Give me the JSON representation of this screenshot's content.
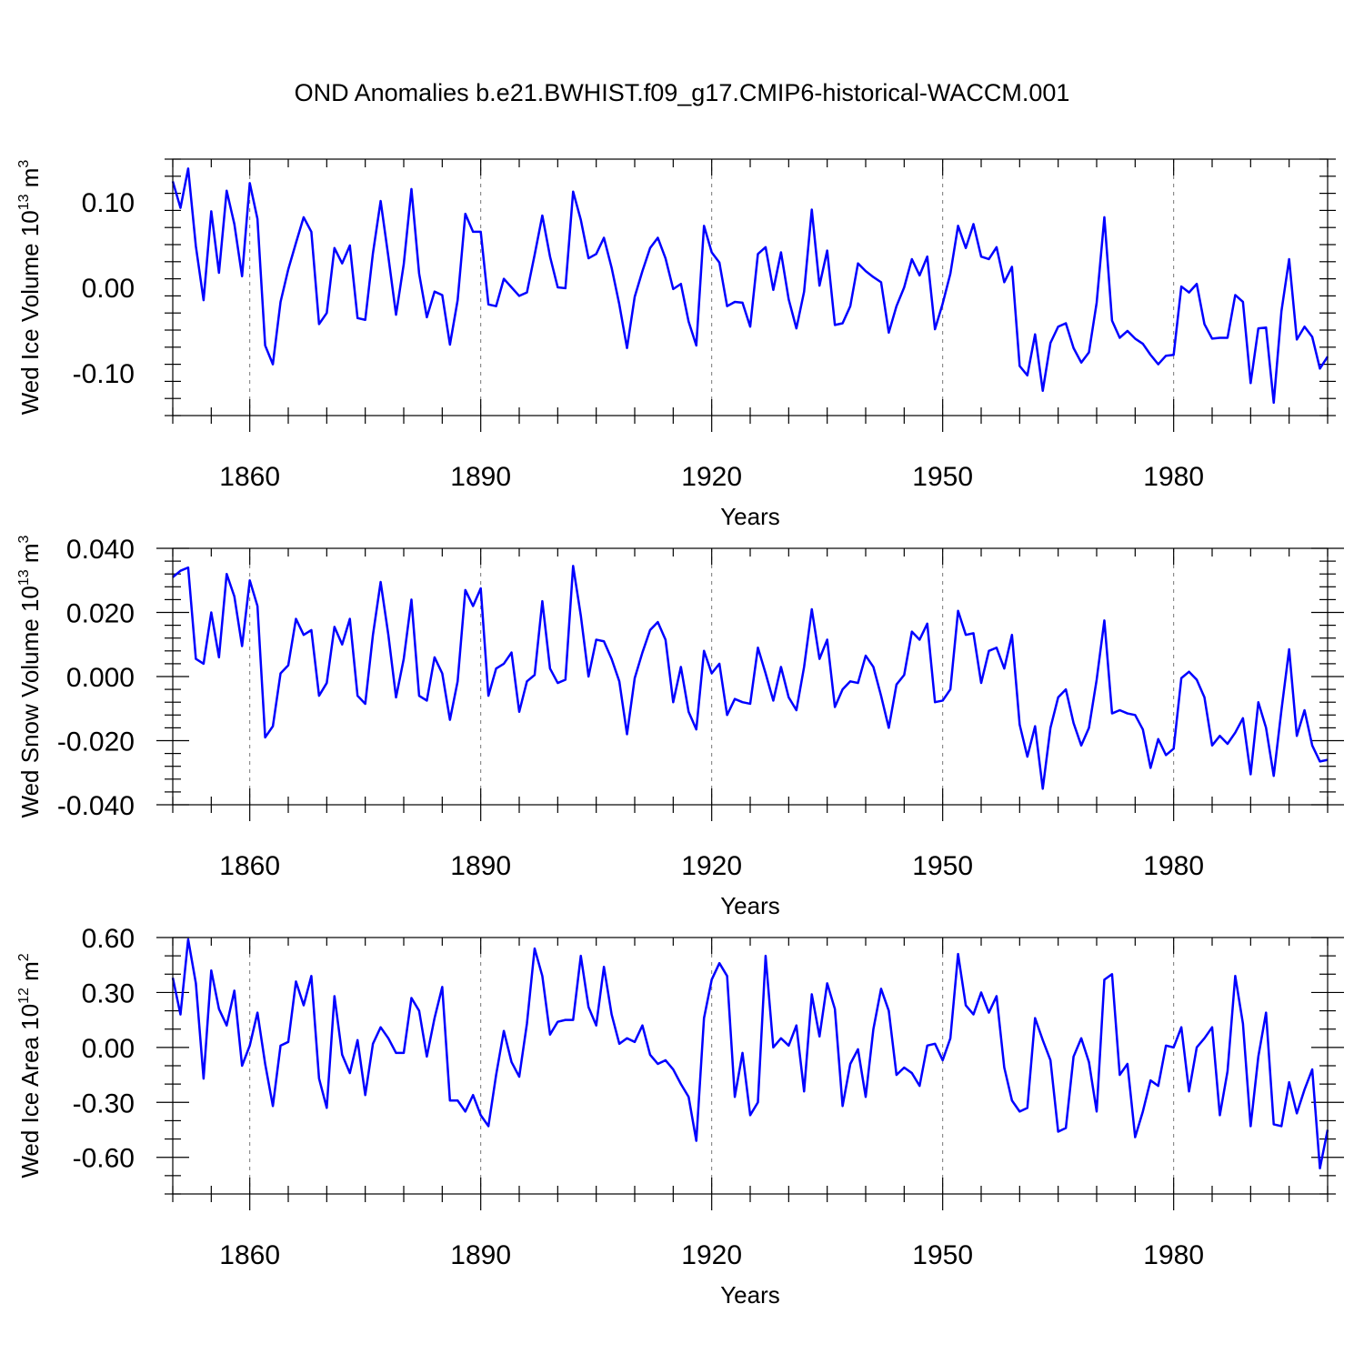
{
  "title": "OND Anomalies b.e21.BWHIST.f09_g17.CMIP6-historical-WACCM.001",
  "line_color": "#0000ff",
  "chart_data": [
    {
      "type": "line",
      "ylabel_main": "Wed Ice Volume 10",
      "ylabel_exp": "13",
      "ylabel_unit": " m",
      "ylabel_unit_exp": "3",
      "xlabel": "Years",
      "xlim": [
        1850,
        2000
      ],
      "ylim": [
        -0.15,
        0.15
      ],
      "x_ticks": [
        1860,
        1890,
        1920,
        1950,
        1980
      ],
      "x_tick_labels": [
        "1860",
        "1890",
        "1920",
        "1950",
        "1980"
      ],
      "y_ticks": [
        0.1,
        0.0,
        -0.1
      ],
      "y_tick_labels": [
        "0.10",
        "0.00",
        "-0.10"
      ],
      "y_minor_step": 0.02,
      "x_start": 1850,
      "values": [
        0.124,
        0.093,
        0.139,
        0.048,
        -0.015,
        0.089,
        0.017,
        0.113,
        0.074,
        0.013,
        0.122,
        0.08,
        -0.068,
        -0.09,
        -0.017,
        0.021,
        0.052,
        0.082,
        0.065,
        -0.043,
        -0.03,
        0.046,
        0.028,
        0.049,
        -0.036,
        -0.038,
        0.04,
        0.101,
        0.036,
        -0.032,
        0.027,
        0.115,
        0.016,
        -0.035,
        -0.005,
        -0.009,
        -0.067,
        -0.015,
        0.086,
        0.065,
        0.065,
        -0.02,
        -0.022,
        0.01,
        0.0,
        -0.01,
        -0.006,
        0.038,
        0.084,
        0.036,
        0.0,
        -0.001,
        0.112,
        0.079,
        0.034,
        0.039,
        0.058,
        0.023,
        -0.02,
        -0.071,
        -0.011,
        0.019,
        0.046,
        0.058,
        0.034,
        -0.002,
        0.004,
        -0.04,
        -0.068,
        0.072,
        0.041,
        0.029,
        -0.022,
        -0.017,
        -0.018,
        -0.046,
        0.039,
        0.047,
        -0.003,
        0.041,
        -0.014,
        -0.048,
        -0.005,
        0.091,
        0.002,
        0.043,
        -0.044,
        -0.042,
        -0.022,
        0.028,
        0.019,
        0.012,
        0.006,
        -0.053,
        -0.022,
        0.0,
        0.033,
        0.014,
        0.036,
        -0.049,
        -0.019,
        0.016,
        0.072,
        0.046,
        0.074,
        0.036,
        0.033,
        0.047,
        0.006,
        0.024,
        -0.092,
        -0.103,
        -0.055,
        -0.121,
        -0.065,
        -0.046,
        -0.042,
        -0.071,
        -0.088,
        -0.076,
        -0.018,
        0.082,
        -0.039,
        -0.059,
        -0.051,
        -0.06,
        -0.066,
        -0.079,
        -0.09,
        -0.08,
        -0.079,
        0.001,
        -0.006,
        0.004,
        -0.043,
        -0.06,
        -0.059,
        -0.059,
        -0.009,
        -0.017,
        -0.112,
        -0.048,
        -0.047,
        -0.135,
        -0.028,
        0.033,
        -0.061,
        -0.046,
        -0.058,
        -0.095,
        -0.081
      ]
    },
    {
      "type": "line",
      "ylabel_main": "Wed Snow Volume 10",
      "ylabel_exp": "13",
      "ylabel_unit": " m",
      "ylabel_unit_exp": "3",
      "xlabel": "Years",
      "xlim": [
        1850,
        2000
      ],
      "ylim": [
        -0.04,
        0.04
      ],
      "x_ticks": [
        1860,
        1890,
        1920,
        1950,
        1980
      ],
      "x_tick_labels": [
        "1860",
        "1890",
        "1920",
        "1950",
        "1980"
      ],
      "y_ticks": [
        0.04,
        0.02,
        0.0,
        -0.02,
        -0.04
      ],
      "y_tick_labels": [
        "0.040",
        "0.020",
        "0.000",
        "-0.020",
        "-0.040"
      ],
      "y_minor_step": 0.004,
      "x_start": 1850,
      "values": [
        0.031,
        0.033,
        0.034,
        0.0055,
        0.004,
        0.02,
        0.006,
        0.032,
        0.025,
        0.0095,
        0.03,
        0.022,
        -0.019,
        -0.0155,
        0.001,
        0.0035,
        0.018,
        0.013,
        0.0145,
        -0.006,
        -0.002,
        0.0155,
        0.01,
        0.018,
        -0.006,
        -0.0085,
        0.013,
        0.0295,
        0.013,
        -0.0065,
        0.0055,
        0.024,
        -0.006,
        -0.0075,
        0.006,
        0.001,
        -0.0135,
        -0.0015,
        0.027,
        0.022,
        0.0275,
        -0.006,
        0.0025,
        0.004,
        0.0075,
        -0.011,
        -0.0015,
        0.0005,
        0.0235,
        0.0025,
        -0.002,
        -0.001,
        0.0345,
        0.019,
        0.0,
        0.0115,
        0.011,
        0.0055,
        -0.0015,
        -0.018,
        -0.0005,
        0.0075,
        0.0145,
        0.017,
        0.0115,
        -0.008,
        0.003,
        -0.011,
        -0.0165,
        0.008,
        0.001,
        0.004,
        -0.012,
        -0.007,
        -0.008,
        -0.0085,
        0.009,
        0.001,
        -0.0075,
        0.003,
        -0.0065,
        -0.0105,
        0.003,
        0.021,
        0.0055,
        0.0115,
        -0.0095,
        -0.004,
        -0.0015,
        -0.002,
        0.0065,
        0.003,
        -0.006,
        -0.016,
        -0.0025,
        0.0005,
        0.014,
        0.0115,
        0.0165,
        -0.008,
        -0.0075,
        -0.004,
        0.0205,
        0.013,
        0.0135,
        -0.002,
        0.008,
        0.009,
        0.0025,
        0.013,
        -0.015,
        -0.025,
        -0.0155,
        -0.035,
        -0.016,
        -0.0065,
        -0.004,
        -0.0145,
        -0.0215,
        -0.016,
        -0.001,
        0.0175,
        -0.0115,
        -0.0105,
        -0.0115,
        -0.012,
        -0.0165,
        -0.0285,
        -0.0195,
        -0.0245,
        -0.0225,
        -0.0005,
        0.0015,
        -0.001,
        -0.0065,
        -0.0215,
        -0.0185,
        -0.021,
        -0.0175,
        -0.013,
        -0.0305,
        -0.008,
        -0.016,
        -0.031,
        -0.0105,
        0.0085,
        -0.0185,
        -0.0105,
        -0.0215,
        -0.0265,
        -0.026
      ]
    },
    {
      "type": "line",
      "ylabel_main": "Wed Ice Area 10",
      "ylabel_exp": "12",
      "ylabel_unit": " m",
      "ylabel_unit_exp": "2",
      "xlabel": "Years",
      "xlim": [
        1850,
        2000
      ],
      "ylim": [
        -0.8,
        0.6
      ],
      "x_ticks": [
        1860,
        1890,
        1920,
        1950,
        1980
      ],
      "x_tick_labels": [
        "1860",
        "1890",
        "1920",
        "1950",
        "1980"
      ],
      "y_ticks": [
        0.6,
        0.3,
        0.0,
        -0.3,
        -0.6
      ],
      "y_tick_labels": [
        "0.60",
        "0.30",
        "0.00",
        "-0.30",
        "-0.60"
      ],
      "y_minor_step": 0.1,
      "x_start": 1850,
      "values": [
        0.38,
        0.18,
        0.59,
        0.35,
        -0.17,
        0.42,
        0.21,
        0.12,
        0.31,
        -0.1,
        0.01,
        0.19,
        -0.09,
        -0.32,
        0.01,
        0.03,
        0.36,
        0.23,
        0.39,
        -0.17,
        -0.33,
        0.28,
        -0.04,
        -0.14,
        0.04,
        -0.26,
        0.02,
        0.11,
        0.05,
        -0.03,
        -0.03,
        0.27,
        0.2,
        -0.05,
        0.16,
        0.33,
        -0.29,
        -0.29,
        -0.35,
        -0.26,
        -0.37,
        -0.43,
        -0.15,
        0.09,
        -0.08,
        -0.16,
        0.13,
        0.54,
        0.39,
        0.07,
        0.14,
        0.15,
        0.15,
        0.5,
        0.22,
        0.12,
        0.44,
        0.18,
        0.02,
        0.05,
        0.03,
        0.12,
        -0.04,
        -0.09,
        -0.07,
        -0.12,
        -0.2,
        -0.27,
        -0.51,
        0.16,
        0.37,
        0.46,
        0.39,
        -0.27,
        -0.03,
        -0.37,
        -0.3,
        0.5,
        0.0,
        0.05,
        0.01,
        0.12,
        -0.24,
        0.29,
        0.06,
        0.35,
        0.21,
        -0.32,
        -0.09,
        -0.01,
        -0.27,
        0.1,
        0.32,
        0.2,
        -0.15,
        -0.11,
        -0.14,
        -0.21,
        0.01,
        0.02,
        -0.07,
        0.05,
        0.51,
        0.23,
        0.18,
        0.3,
        0.19,
        0.28,
        -0.11,
        -0.29,
        -0.35,
        -0.33,
        0.16,
        0.04,
        -0.07,
        -0.46,
        -0.44,
        -0.05,
        0.05,
        -0.08,
        -0.35,
        0.37,
        0.4,
        -0.15,
        -0.09,
        -0.49,
        -0.35,
        -0.18,
        -0.21,
        0.01,
        0.0,
        0.11,
        -0.24,
        0.0,
        0.05,
        0.11,
        -0.37,
        -0.13,
        0.39,
        0.13,
        -0.43,
        -0.05,
        0.19,
        -0.42,
        -0.43,
        -0.19,
        -0.36,
        -0.23,
        -0.12,
        -0.66,
        -0.45
      ]
    }
  ]
}
